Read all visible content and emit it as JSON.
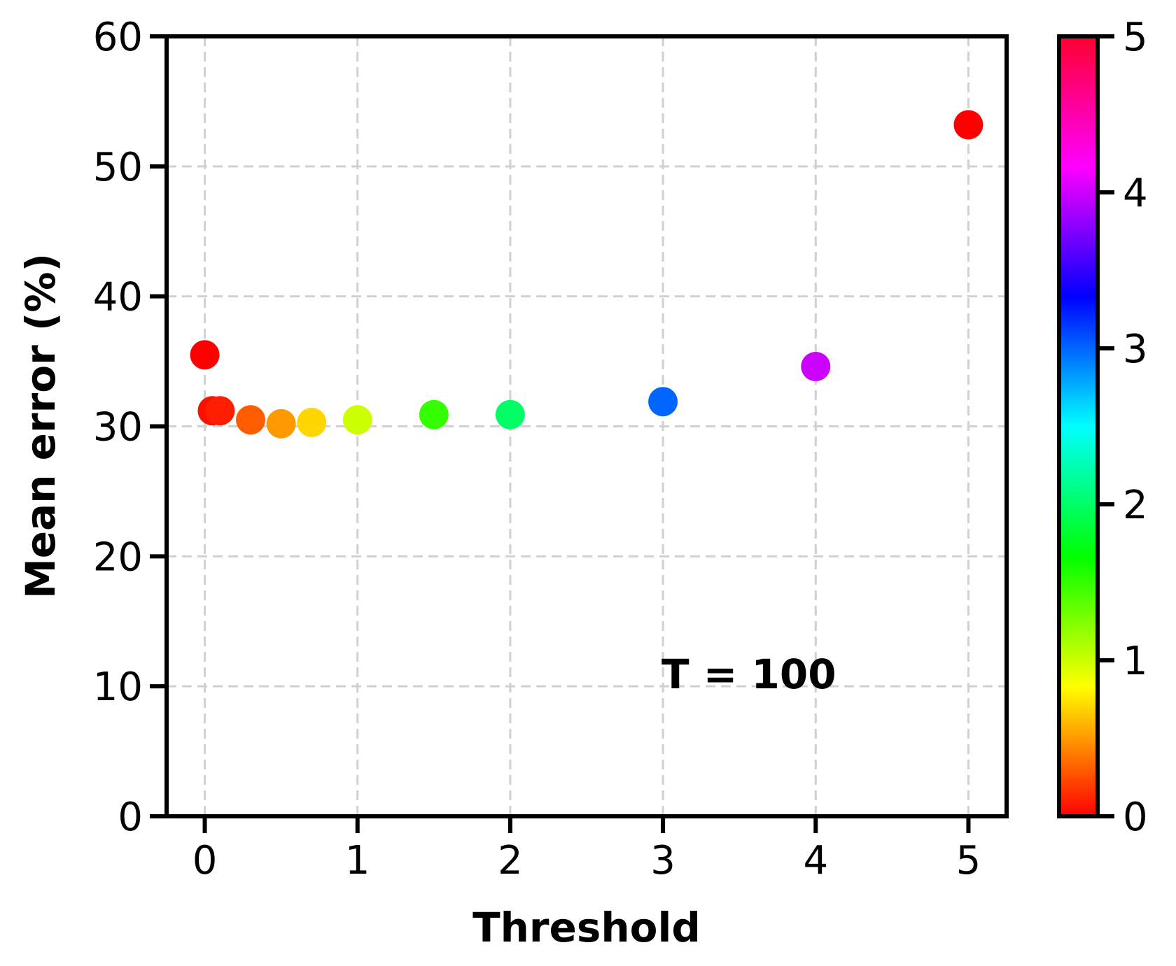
{
  "chart_data": {
    "type": "scatter",
    "xlabel": "Threshold",
    "ylabel": "Mean error (%)",
    "xlim": [
      -0.25,
      5.25
    ],
    "ylim": [
      0,
      60
    ],
    "x_ticks": [
      "0",
      "1",
      "2",
      "3",
      "4",
      "5"
    ],
    "y_ticks": [
      "0",
      "10",
      "20",
      "30",
      "40",
      "50",
      "60"
    ],
    "grid": true,
    "annotation": "T = 100",
    "colormap": "hsv",
    "colorbar": {
      "range": [
        0,
        5
      ],
      "ticks": [
        "0",
        "1",
        "2",
        "3",
        "4",
        "5"
      ]
    },
    "points": [
      {
        "x": 0.0,
        "y": 35.5
      },
      {
        "x": 0.05,
        "y": 31.2
      },
      {
        "x": 0.1,
        "y": 31.2
      },
      {
        "x": 0.3,
        "y": 30.5
      },
      {
        "x": 0.5,
        "y": 30.2
      },
      {
        "x": 0.7,
        "y": 30.3
      },
      {
        "x": 1.0,
        "y": 30.5
      },
      {
        "x": 1.5,
        "y": 30.9
      },
      {
        "x": 2.0,
        "y": 30.9
      },
      {
        "x": 3.0,
        "y": 31.9
      },
      {
        "x": 4.0,
        "y": 34.6
      },
      {
        "x": 5.0,
        "y": 53.2
      }
    ]
  }
}
